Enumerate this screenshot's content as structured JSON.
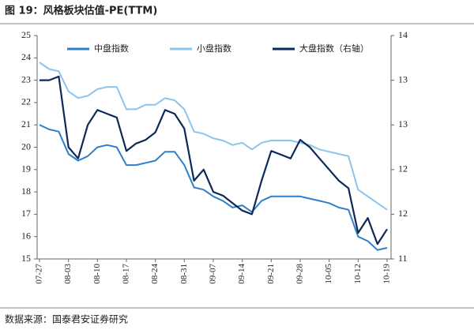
{
  "chart_data": {
    "type": "line",
    "title": "图 19：风格板块估值-PE(TTM)",
    "source": "数据来源：国泰君安证券研究",
    "categories": [
      "07-27",
      null,
      null,
      "08-03",
      null,
      null,
      "08-10",
      null,
      null,
      "08-17",
      null,
      null,
      "08-24",
      null,
      null,
      "08-31",
      null,
      null,
      "09-07",
      null,
      null,
      "09-14",
      null,
      null,
      "09-21",
      null,
      null,
      "09-28",
      null,
      null,
      "10-05",
      null,
      null,
      "10-12",
      null,
      null,
      "10-19"
    ],
    "series": [
      {
        "name": "中盘指数",
        "color": "#2e7fc8",
        "axis": "y",
        "values": [
          21.0,
          20.8,
          20.7,
          19.7,
          19.4,
          19.6,
          20.0,
          20.1,
          20.0,
          19.2,
          19.2,
          19.3,
          19.4,
          19.8,
          19.8,
          19.2,
          18.2,
          18.1,
          17.8,
          17.6,
          17.3,
          17.4,
          17.1,
          17.6,
          17.8,
          17.8,
          17.8,
          17.8,
          17.7,
          17.6,
          17.5,
          17.3,
          17.2,
          16.0,
          15.8,
          15.4,
          15.5
        ]
      },
      {
        "name": "小盘指数",
        "color": "#8cc4ea",
        "axis": "y",
        "values": [
          23.8,
          23.5,
          23.4,
          22.5,
          22.2,
          22.3,
          22.6,
          22.7,
          22.7,
          21.7,
          21.7,
          21.9,
          21.9,
          22.2,
          22.1,
          21.7,
          20.7,
          20.6,
          20.4,
          20.3,
          20.1,
          20.2,
          19.9,
          20.2,
          20.3,
          20.3,
          20.3,
          20.2,
          20.1,
          19.9,
          19.8,
          19.7,
          19.6,
          18.1,
          17.8,
          17.5,
          17.2
        ]
      },
      {
        "name": "大盘指数（右轴）",
        "color": "#0d2a57",
        "axis": "y2",
        "values": [
          13.4,
          13.4,
          13.45,
          12.5,
          12.35,
          12.8,
          13.0,
          12.95,
          12.9,
          12.45,
          12.55,
          12.6,
          12.7,
          13.0,
          12.95,
          12.75,
          12.05,
          12.2,
          11.9,
          11.85,
          11.75,
          11.65,
          11.6,
          12.05,
          12.45,
          12.4,
          12.35,
          12.6,
          12.5,
          12.35,
          12.2,
          12.05,
          11.95,
          11.35,
          11.55,
          11.2,
          11.4
        ]
      }
    ],
    "ylim": [
      15,
      25
    ],
    "yticks": [
      15,
      16,
      17,
      18,
      19,
      20,
      21,
      22,
      23,
      24,
      25
    ],
    "y2lim": [
      11,
      14
    ],
    "y2ticks": [
      {
        "value": 11,
        "label": "11"
      },
      {
        "value": 11.6,
        "label": "12"
      },
      {
        "value": 12.2,
        "label": "12"
      },
      {
        "value": 12.8,
        "label": "13"
      },
      {
        "value": 13.4,
        "label": "13"
      },
      {
        "value": 14,
        "label": "14"
      }
    ],
    "legend": "top"
  }
}
